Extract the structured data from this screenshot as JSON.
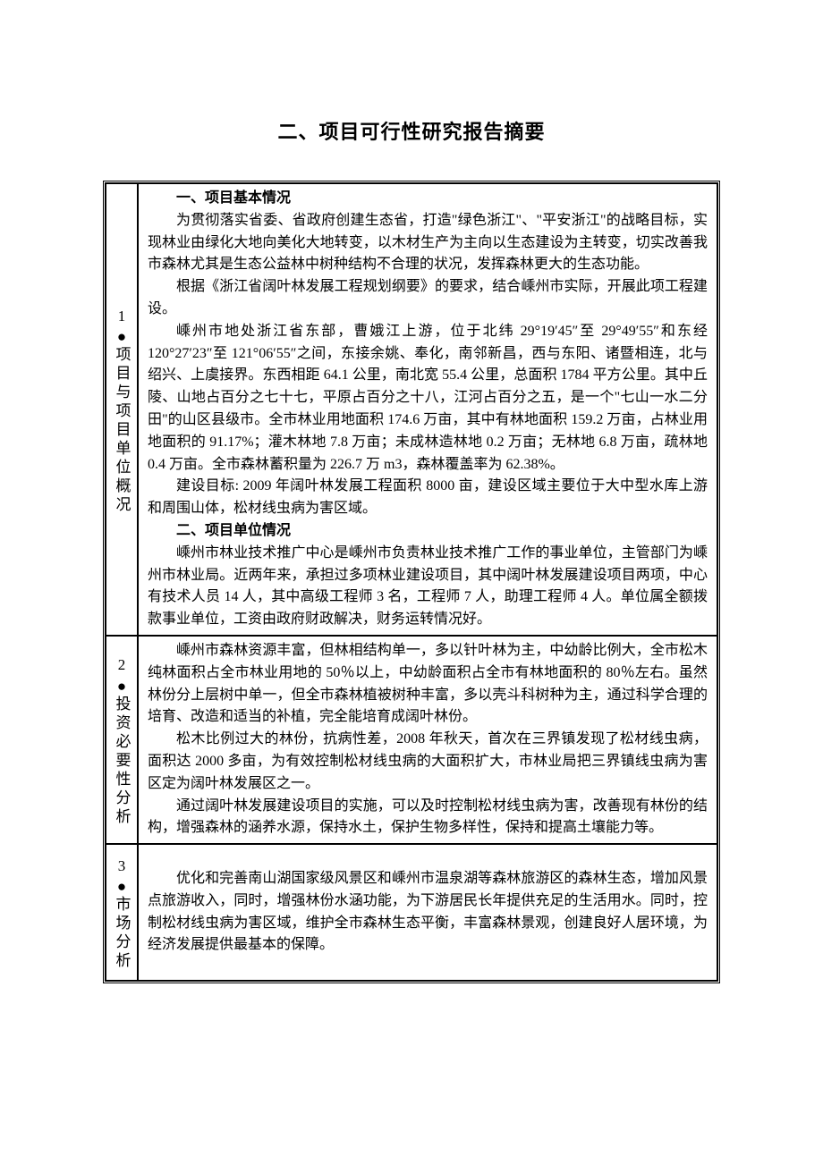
{
  "title": "二、项目可行性研究报告摘要",
  "rows": [
    {
      "num": "1",
      "label": "项目与项目单位概况",
      "content": [
        {
          "type": "subtitle",
          "text": "一、项目基本情况"
        },
        {
          "type": "p",
          "text": "为贯彻落实省委、省政府创建生态省，打造\"绿色浙江\"、\"平安浙江\"的战略目标，实现林业由绿化大地向美化大地转变，以木材生产为主向以生态建设为主转变，切实改善我市森林尤其是生态公益林中树种结构不合理的状况，发挥森林更大的生态功能。"
        },
        {
          "type": "p",
          "text": "根据《浙江省阔叶林发展工程规划纲要》的要求，结合嵊州市实际，开展此项工程建设。"
        },
        {
          "type": "p",
          "text": "嵊州市地处浙江省东部，曹娥江上游，位于北纬 29°19′45″至 29°49′55″和东经 120°27′23″至 121°06′55″之间，东接余姚、奉化，南邻新昌，西与东阳、诸暨相连，北与绍兴、上虞接界。东西相距 64.1 公里，南北宽 55.4 公里，总面积 1784 平方公里。其中丘陵、山地占百分之七十七，平原占百分之十八，江河占百分之五，是一个\"七山一水二分田\"的山区县级市。全市林业用地面积 174.6 万亩，其中有林地面积 159.2 万亩，占林业用地面积的 91.17%；灌木林地 7.8 万亩；未成林造林地 0.2 万亩；无林地 6.8 万亩，疏林地 0.4 万亩。全市森林蓄积量为 226.7 万 m3，森林覆盖率为 62.38%。"
        },
        {
          "type": "p",
          "text": "建设目标: 2009 年阔叶林发展工程面积 8000 亩，建设区域主要位于大中型水库上游和周围山体，松材线虫病为害区域。"
        },
        {
          "type": "subtitle",
          "text": "二、项目单位情况"
        },
        {
          "type": "p",
          "text": "嵊州市林业技术推广中心是嵊州市负责林业技术推广工作的事业单位，主管部门为嵊州市林业局。近两年来，承担过多项林业建设项目，其中阔叶林发展建设项目两项，中心有技术人员 14 人，其中高级工程师 3 名，工程师 7 人，助理工程师 4 人。单位属全额拨款事业单位，工资由政府财政解决，财务运转情况好。"
        }
      ]
    },
    {
      "num": "2",
      "label": "投资必要性分析",
      "content": [
        {
          "type": "p",
          "text": "嵊州市森林资源丰富，但林相结构单一，多以针叶林为主，中幼龄比例大，全市松木纯林面积占全市林业用地的 50％以上，中幼龄面积占全市有林地面积的 80％左右。虽然林份分上层树中单一，但全市森林植被树种丰富，多以壳斗科树种为主，通过科学合理的培育、改造和适当的补植，完全能培育成阔叶林份。"
        },
        {
          "type": "p",
          "text": "松木比例过大的林份，抗病性差，2008 年秋天，首次在三界镇发现了松材线虫病，面积达 2000 多亩，为有效控制松材线虫病的大面积扩大，市林业局把三界镇线虫病为害区定为阔叶林发展区之一。"
        },
        {
          "type": "p",
          "text": "通过阔叶林发展建设项目的实施，可以及时控制松材线虫病为害，改善现有林份的结构，增强森林的涵养水源，保持水土，保护生物多样性，保持和提高土壤能力等。"
        }
      ]
    },
    {
      "num": "3",
      "label": "市场分析",
      "content": [
        {
          "type": "p",
          "text": "优化和完善南山湖国家级风景区和嵊州市温泉湖等森林旅游区的森林生态，增加风景点旅游收入，同时，增强林份水涵功能，为下游居民长年提供充足的生活用水。同时，控制松材线虫病为害区域，维护全市森林生态平衡，丰富森林景观，创建良好人居环境，为经济发展提供最基本的保障。"
        }
      ]
    }
  ]
}
